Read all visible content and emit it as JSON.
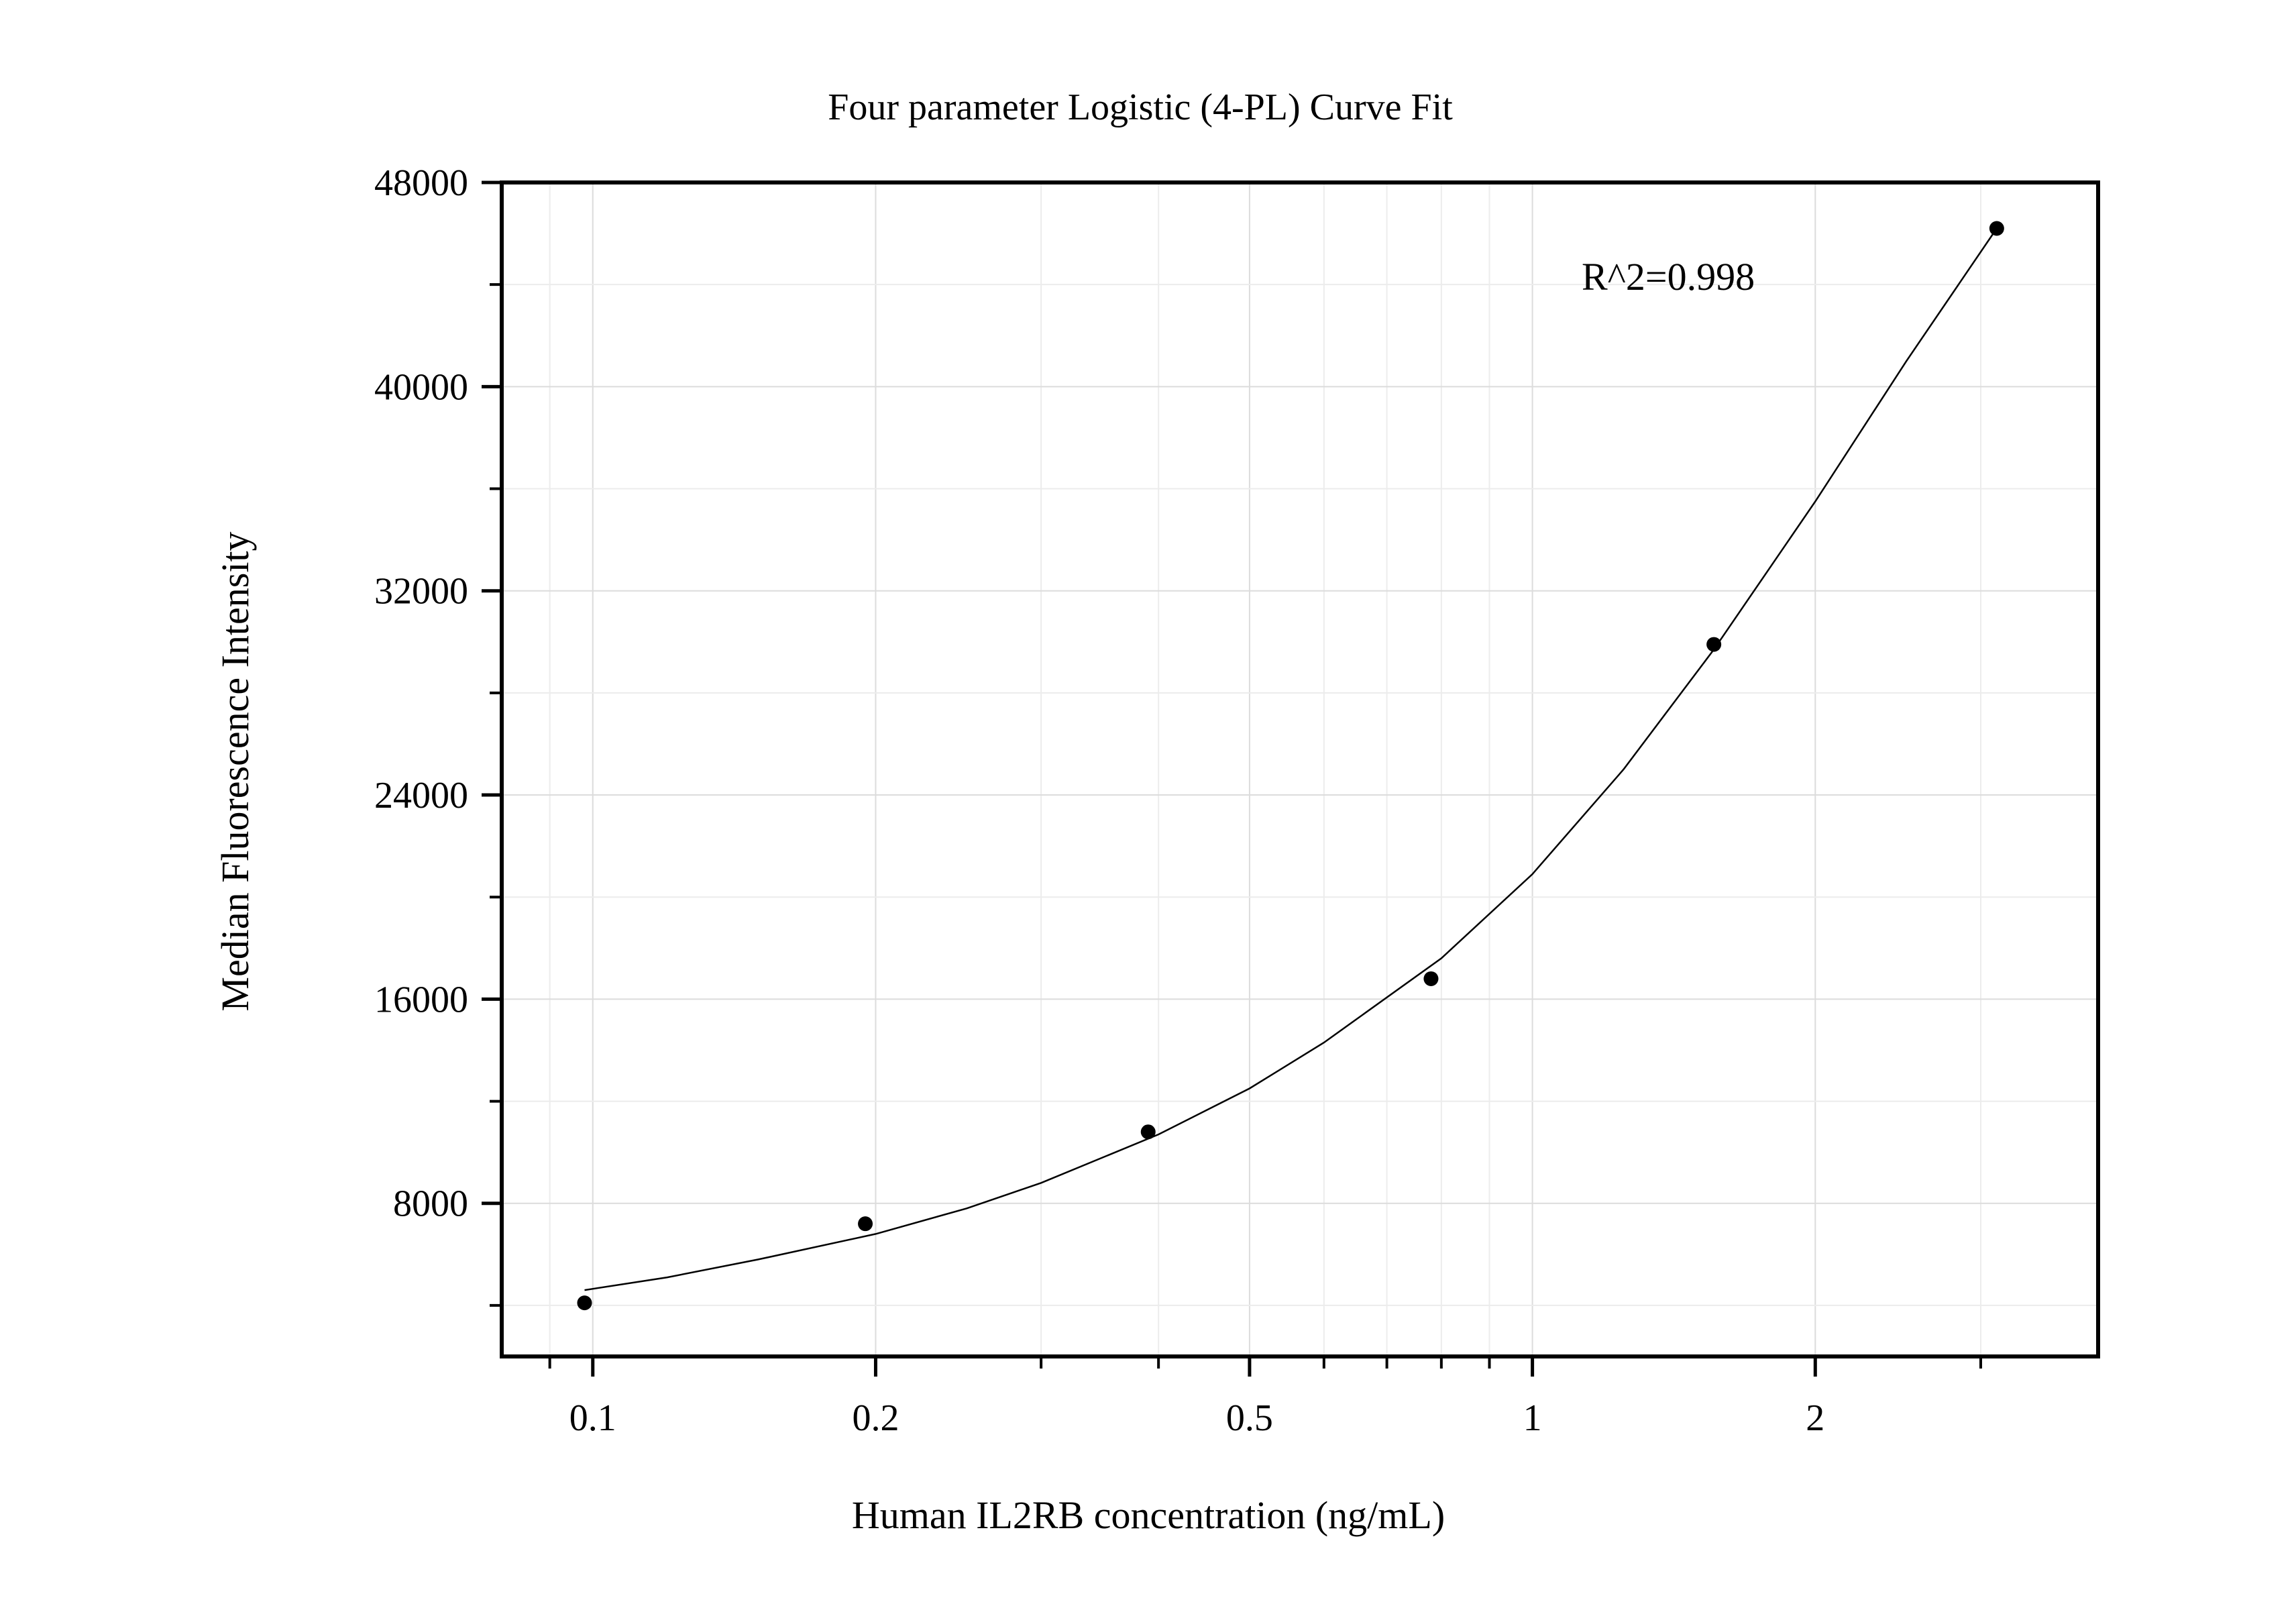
{
  "chart_data": {
    "type": "scatter",
    "title": "Four parameter Logistic (4-PL) Curve Fit",
    "xlabel": "Human IL2RB concentration (ng/mL)",
    "ylabel": "Median Fluorescence Intensity",
    "annotation": "R^2=0.998",
    "x_scale": "log",
    "xlim": [
      0.08,
      4.0
    ],
    "ylim": [
      2000,
      48000
    ],
    "x_ticks": [
      {
        "value": 0.1,
        "label": "0.1"
      },
      {
        "value": 0.2,
        "label": "0.2"
      },
      {
        "value": 0.5,
        "label": "0.5"
      },
      {
        "value": 1,
        "label": "1"
      },
      {
        "value": 2,
        "label": "2"
      }
    ],
    "x_minor_ticks": [
      0.09,
      0.3,
      0.4,
      0.6,
      0.7,
      0.8,
      0.9,
      3
    ],
    "y_ticks": [
      {
        "value": 8000,
        "label": "8000"
      },
      {
        "value": 16000,
        "label": "16000"
      },
      {
        "value": 24000,
        "label": "24000"
      },
      {
        "value": 32000,
        "label": "32000"
      },
      {
        "value": 40000,
        "label": "40000"
      },
      {
        "value": 48000,
        "label": "48000"
      }
    ],
    "y_minor_ticks": [
      4000,
      12000,
      20000,
      28000,
      36000,
      44000
    ],
    "grid": true,
    "legend": "none",
    "series": [
      {
        "points": [
          {
            "x": 0.098,
            "y": 4100
          },
          {
            "x": 0.195,
            "y": 7200
          },
          {
            "x": 0.39,
            "y": 10800
          },
          {
            "x": 0.78,
            "y": 16800
          },
          {
            "x": 1.56,
            "y": 29900
          },
          {
            "x": 3.12,
            "y": 46200
          }
        ]
      }
    ],
    "fit_curve": {
      "x": [
        0.098,
        0.12,
        0.15,
        0.2,
        0.25,
        0.3,
        0.4,
        0.5,
        0.6,
        0.8,
        1.0,
        1.25,
        1.56,
        2.0,
        2.5,
        3.12
      ],
      "y": [
        4600,
        5100,
        5800,
        6800,
        7800,
        8800,
        10700,
        12500,
        14300,
        17600,
        20900,
        25000,
        29700,
        35500,
        41000,
        46200
      ]
    }
  }
}
